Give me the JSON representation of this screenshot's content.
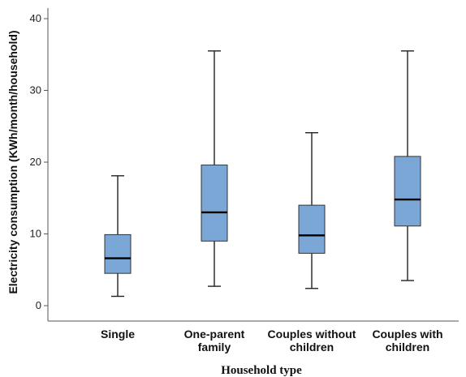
{
  "chart_data": {
    "type": "boxplot",
    "title": "",
    "xlabel": "Household type",
    "ylabel": "Electricity consumption (KWh/month/household)",
    "ylim": [
      0,
      40
    ],
    "yticks": [
      "0",
      "10",
      "20",
      "30",
      "40"
    ],
    "grid": false,
    "box_color": "#7BA7D7",
    "categories": [
      [
        "Single"
      ],
      [
        "One-parent",
        "family"
      ],
      [
        "Couples without",
        "children"
      ],
      [
        "Couples with",
        "children"
      ]
    ],
    "boxes": [
      {
        "whisker_low": 1.3,
        "q1": 4.5,
        "median": 6.6,
        "q3": 9.9,
        "whisker_high": 18.1
      },
      {
        "whisker_low": 2.7,
        "q1": 9.0,
        "median": 13.0,
        "q3": 19.6,
        "whisker_high": 35.5
      },
      {
        "whisker_low": 2.4,
        "q1": 7.3,
        "median": 9.8,
        "q3": 14.0,
        "whisker_high": 24.1
      },
      {
        "whisker_low": 3.5,
        "q1": 11.1,
        "median": 14.8,
        "q3": 20.8,
        "whisker_high": 35.5
      }
    ]
  }
}
